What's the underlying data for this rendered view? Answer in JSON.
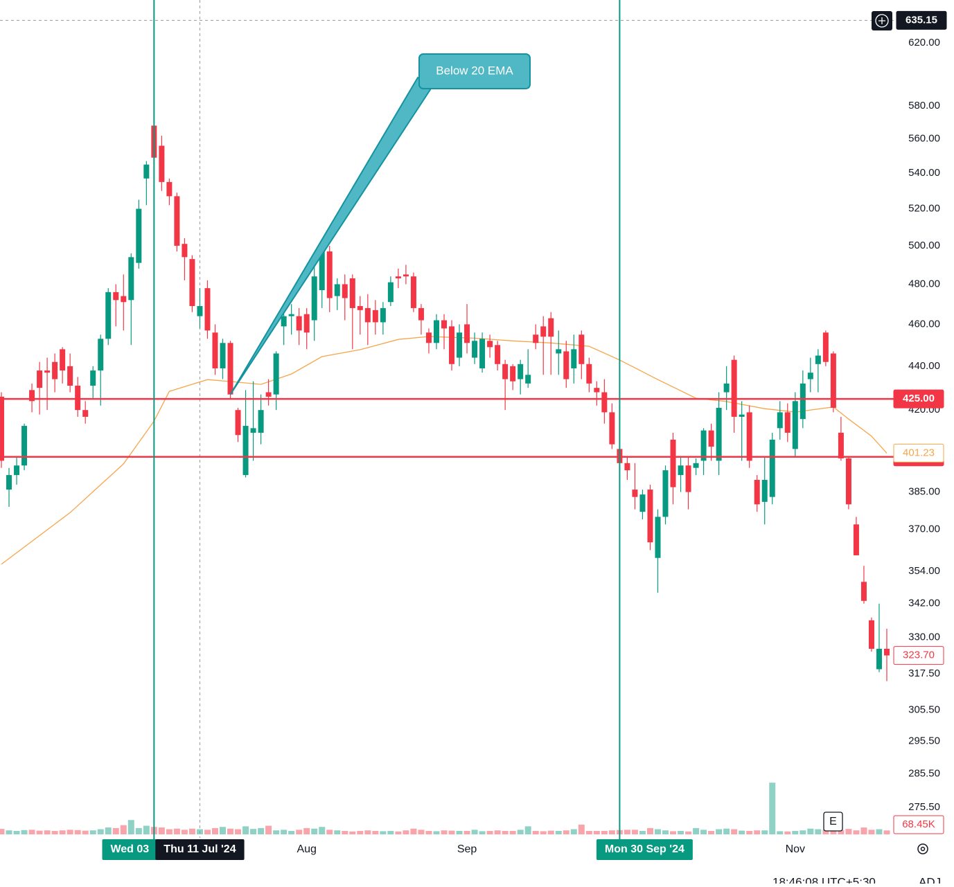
{
  "chart_data": {
    "type": "candlestick",
    "log_scale": true,
    "ylim": [
      268.7,
      649
    ],
    "yticks": [
      {
        "value": 620,
        "label": "620.00"
      },
      {
        "value": 580,
        "label": "580.00"
      },
      {
        "value": 560,
        "label": "560.00"
      },
      {
        "value": 540,
        "label": "540.00"
      },
      {
        "value": 520,
        "label": "520.00"
      },
      {
        "value": 500,
        "label": "500.00"
      },
      {
        "value": 480,
        "label": "480.00"
      },
      {
        "value": 460,
        "label": "460.00"
      },
      {
        "value": 440,
        "label": "440.00"
      },
      {
        "value": 420,
        "label": "420.00"
      },
      {
        "value": 385,
        "label": "385.00"
      },
      {
        "value": 370,
        "label": "370.00"
      },
      {
        "value": 354,
        "label": "354.00"
      },
      {
        "value": 342,
        "label": "342.00"
      },
      {
        "value": 330,
        "label": "330.00"
      },
      {
        "value": 317.5,
        "label": "317.50"
      },
      {
        "value": 305.5,
        "label": "305.50"
      },
      {
        "value": 295.5,
        "label": "295.50"
      },
      {
        "value": 285.5,
        "label": "285.50"
      },
      {
        "value": 275.5,
        "label": "275.50"
      }
    ],
    "categories": [
      null,
      null,
      null,
      null,
      null,
      null,
      null,
      null,
      null,
      null,
      null,
      null,
      null,
      null,
      null,
      null,
      null,
      null,
      null,
      null,
      null,
      null,
      null,
      null,
      null,
      null,
      null,
      null,
      null,
      null,
      null,
      null,
      null,
      null,
      null,
      null,
      null,
      null,
      null,
      null,
      "Aug",
      null,
      null,
      null,
      null,
      null,
      null,
      null,
      null,
      null,
      null,
      null,
      null,
      null,
      null,
      null,
      null,
      null,
      null,
      null,
      null,
      "Sep",
      null,
      null,
      null,
      null,
      null,
      null,
      null,
      null,
      null,
      null,
      null,
      null,
      null,
      null,
      null,
      null,
      null,
      null,
      null,
      null,
      null,
      null,
      null,
      null,
      null,
      null,
      null,
      null,
      null,
      null,
      null,
      null,
      null,
      null,
      null,
      null,
      null,
      null,
      null,
      null,
      null,
      null,
      "Nov",
      null,
      null,
      null,
      null,
      null,
      null,
      null,
      null,
      null,
      null,
      null,
      null
    ],
    "open": [
      426,
      386,
      392,
      396,
      429,
      438,
      438,
      442,
      448,
      440,
      431,
      420,
      431,
      438,
      453,
      476,
      474,
      472,
      491,
      537,
      568,
      556,
      535,
      527,
      501,
      493,
      464,
      478,
      456,
      439,
      451,
      420,
      392,
      410,
      410,
      428,
      427,
      459,
      464,
      464,
      465,
      462,
      477,
      497,
      474,
      480,
      483,
      469,
      468,
      467,
      461,
      471,
      484,
      485,
      484,
      468,
      456,
      451,
      462,
      459,
      444,
      460,
      444,
      439,
      452,
      450,
      441,
      440,
      434,
      432,
      455,
      459,
      463,
      446,
      447,
      439,
      455,
      441,
      430,
      428,
      419,
      403,
      397,
      386,
      377,
      386,
      359,
      375,
      407,
      392,
      396,
      395,
      398,
      411,
      398,
      428,
      443,
      417,
      419,
      390,
      381,
      383,
      412,
      419,
      403,
      416,
      434,
      441,
      456,
      446,
      410,
      399,
      372,
      350,
      336,
      319,
      326
    ],
    "high": [
      428,
      395,
      400,
      414,
      432,
      442,
      444,
      446,
      449,
      446,
      435,
      424,
      440,
      455,
      478,
      480,
      485,
      496,
      525,
      547,
      575,
      562,
      537,
      529,
      504,
      495,
      478,
      482,
      460,
      453,
      452,
      421,
      429,
      433,
      427,
      434,
      447,
      470,
      470,
      468,
      468,
      489,
      502,
      500,
      483,
      485,
      485,
      474,
      475,
      472,
      471,
      484,
      488,
      490,
      486,
      470,
      458,
      465,
      465,
      462,
      460,
      470,
      456,
      456,
      455,
      452,
      443,
      441,
      443,
      448,
      460,
      464,
      466,
      457,
      452,
      455,
      457,
      444,
      433,
      434,
      423,
      405,
      400,
      397,
      386,
      388,
      378,
      396,
      410,
      400,
      400,
      399,
      412,
      414,
      428,
      440,
      445,
      424,
      422,
      392,
      400,
      410,
      424,
      423,
      428,
      438,
      444,
      448,
      457,
      447,
      417,
      400,
      375,
      356,
      337,
      342,
      333
    ],
    "low": [
      395,
      379,
      388,
      394,
      419,
      418,
      420,
      428,
      432,
      428,
      417,
      414,
      425,
      422,
      450,
      459,
      457,
      450,
      488,
      522,
      535,
      530,
      522,
      497,
      482,
      466,
      458,
      453,
      436,
      434,
      425,
      406,
      391,
      398,
      405,
      422,
      420,
      450,
      455,
      450,
      448,
      452,
      468,
      466,
      467,
      462,
      448,
      455,
      450,
      455,
      455,
      469,
      478,
      480,
      466,
      455,
      446,
      448,
      448,
      438,
      440,
      446,
      441,
      437,
      444,
      438,
      420,
      429,
      427,
      430,
      448,
      436,
      436,
      436,
      430,
      432,
      434,
      428,
      422,
      414,
      403,
      394,
      390,
      378,
      374,
      362,
      346,
      372,
      380,
      385,
      378,
      392,
      392,
      398,
      392,
      420,
      410,
      398,
      395,
      377,
      372,
      380,
      407,
      406,
      400,
      412,
      428,
      428,
      440,
      419,
      398,
      378,
      360,
      342,
      325,
      318,
      315
    ],
    "close": [
      398,
      392,
      396,
      413,
      424,
      430,
      437,
      434,
      438,
      431,
      420,
      417,
      438,
      453,
      476,
      472,
      471,
      494,
      520,
      545,
      549,
      535,
      527,
      500,
      494,
      469,
      469,
      457,
      439,
      451,
      427,
      409,
      413,
      412,
      420,
      426,
      446,
      464,
      465,
      457,
      456,
      484,
      497,
      473,
      480,
      473,
      468,
      467,
      461,
      461,
      468,
      481,
      483,
      484,
      468,
      462,
      451,
      462,
      458,
      441,
      456,
      451,
      452,
      453,
      449,
      441,
      434,
      433,
      441,
      436,
      451,
      454,
      454,
      448,
      434,
      448,
      441,
      432,
      428,
      419,
      405,
      397,
      394,
      383,
      384,
      365,
      375,
      394,
      387,
      396,
      385,
      397,
      411,
      404,
      421,
      432,
      417,
      418,
      398,
      380,
      390,
      407,
      419,
      410,
      424,
      432,
      437,
      445,
      442,
      421,
      399,
      380,
      360,
      343,
      326,
      326,
      323.7
    ],
    "up_color": "#089981",
    "down_color": "#f23645",
    "ema": {
      "color": "#f7a54b",
      "x": [
        0,
        9,
        16,
        20,
        22,
        27,
        31,
        34,
        38,
        42,
        47,
        52,
        56,
        62,
        67,
        72,
        77,
        81,
        86,
        91,
        95,
        100,
        104,
        109,
        111,
        114,
        116
      ],
      "values": [
        356.6,
        376.7,
        396.7,
        415.1,
        428.4,
        433.8,
        432.6,
        431.6,
        436.4,
        444.5,
        447.8,
        452.7,
        454.1,
        453.3,
        452,
        451,
        449.4,
        442.9,
        433.8,
        425.3,
        423.8,
        420.6,
        419.1,
        421.4,
        416,
        408.5,
        401.23
      ]
    },
    "volume": {
      "ylim": [
        0,
        1000
      ],
      "values": [
        95,
        70,
        60,
        75,
        80,
        65,
        70,
        60,
        70,
        80,
        75,
        65,
        70,
        90,
        120,
        110,
        160,
        250,
        110,
        150,
        130,
        120,
        90,
        100,
        80,
        100,
        90,
        80,
        110,
        130,
        100,
        90,
        140,
        95,
        110,
        150,
        70,
        80,
        60,
        80,
        110,
        100,
        130,
        80,
        70,
        60,
        50,
        60,
        70,
        60,
        55,
        60,
        50,
        70,
        100,
        80,
        60,
        55,
        70,
        65,
        60,
        60,
        80,
        55,
        60,
        70,
        60,
        60,
        80,
        140,
        60,
        55,
        65,
        60,
        70,
        90,
        170,
        60,
        60,
        60,
        70,
        75,
        80,
        80,
        60,
        110,
        90,
        70,
        55,
        60,
        50,
        110,
        80,
        60,
        90,
        100,
        90,
        65,
        60,
        70,
        70,
        900,
        55,
        50,
        60,
        70,
        100,
        90,
        80,
        55,
        75,
        95,
        70,
        120,
        80,
        90,
        68.45
      ],
      "last_label": {
        "value": 68.45,
        "label": "68.45K"
      }
    },
    "horizontal_lines": [
      {
        "value": 425,
        "label": "425.00",
        "color": "#f23645"
      },
      {
        "value": 399.65,
        "color": "#f23645"
      }
    ],
    "vertical_lines": [
      {
        "bar": 20,
        "label": "Wed 03",
        "color": "#089981"
      },
      {
        "bar": 81,
        "label": "Mon 30 Sep '24",
        "color": "#089981"
      }
    ],
    "crosshair": {
      "bar": 26,
      "label": "Thu 11 Jul '24",
      "price": 635.15
    },
    "last_price": {
      "value": 323.7,
      "label": "323.70"
    },
    "annotation": {
      "text": "Below 20 EMA",
      "bar": 30
    },
    "e_button": "E",
    "footer": {
      "time": "18:46:08 UTC+5:30",
      "adj": "ADJ"
    }
  }
}
